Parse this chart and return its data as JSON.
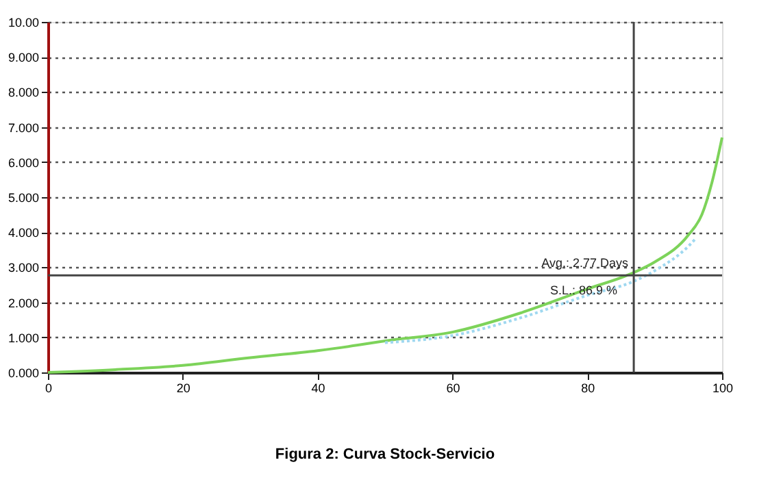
{
  "chart_data": {
    "type": "line",
    "title": "Figura 2: Curva Stock-Servicio",
    "series": [
      {
        "color": "#7dd35a",
        "line_style": "solid",
        "x": [
          0,
          10,
          20,
          30,
          40,
          46,
          50,
          60,
          70,
          80,
          86.9,
          90,
          95,
          97,
          98.5,
          100
        ],
        "values": [
          0,
          0.08,
          0.2,
          0.42,
          0.62,
          0.78,
          0.9,
          1.15,
          1.69,
          2.38,
          2.85,
          3.15,
          3.92,
          4.5,
          5.42,
          6.7
        ]
      },
      {
        "color": "#9fd8f0",
        "line_style": "dotted",
        "x": [
          50,
          60,
          70,
          80,
          86.9,
          90,
          95,
          96
        ],
        "values": [
          0.85,
          1.05,
          1.55,
          2.2,
          2.6,
          2.9,
          3.6,
          3.8
        ]
      }
    ],
    "xlim": [
      0,
      100
    ],
    "xticks": [
      0,
      20,
      40,
      60,
      80,
      100
    ],
    "ylim": [
      0,
      10
    ],
    "yticks": [
      {
        "value": 0,
        "label": "0.000"
      },
      {
        "value": 1,
        "label": "1.000"
      },
      {
        "value": 2,
        "label": "2.000"
      },
      {
        "value": 3,
        "label": "3.000"
      },
      {
        "value": 4,
        "label": "4.000"
      },
      {
        "value": 5,
        "label": "5.000"
      },
      {
        "value": 6,
        "label": "6.000"
      },
      {
        "value": 7,
        "label": "7.000"
      },
      {
        "value": 8,
        "label": "8.000"
      },
      {
        "value": 9,
        "label": "9.000"
      },
      {
        "value": 10,
        "label": "10.00"
      }
    ],
    "grid": "y",
    "marker": "none",
    "ref_lines": [
      {
        "axis": "y",
        "value": 2.77,
        "label": "Avg.: 2.77 Days",
        "color": "#444444"
      },
      {
        "axis": "x",
        "value": 86.9,
        "label": "S.L.: 86.9 %",
        "color": "#444444"
      }
    ]
  }
}
